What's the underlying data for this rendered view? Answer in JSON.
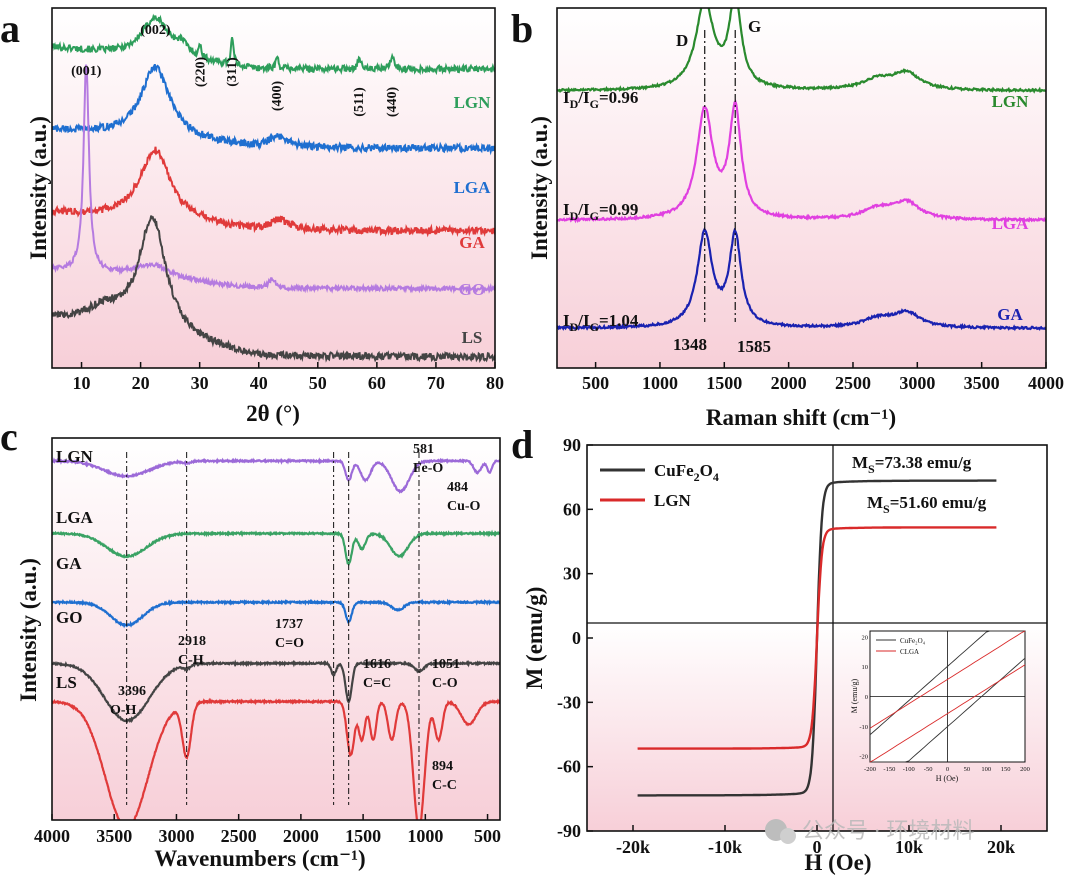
{
  "watermark": "公众号 · 环境材料",
  "chart_data": [
    {
      "panel": "a",
      "type": "line",
      "title": "",
      "xlabel": "2θ (°)",
      "ylabel": "Intensity (a.u.)",
      "xlim": [
        5,
        80
      ],
      "xticks": [
        "10",
        "20",
        "30",
        "40",
        "50",
        "60",
        "70",
        "80"
      ],
      "series": [
        {
          "name": "LGN",
          "color": "#2e9e5b",
          "baseline": 0.83,
          "bg_slope": 0.06,
          "noise": 0.018,
          "peaks": [
            {
              "x": 22.5,
              "h": 0.11,
              "w": 2.8
            },
            {
              "x": 30.1,
              "h": 0.035,
              "w": 0.25
            },
            {
              "x": 35.5,
              "h": 0.075,
              "w": 0.25
            },
            {
              "x": 43.1,
              "h": 0.03,
              "w": 0.3
            },
            {
              "x": 57.0,
              "h": 0.035,
              "w": 0.3
            },
            {
              "x": 62.6,
              "h": 0.04,
              "w": 0.3
            },
            {
              "x": 27,
              "h": 0.03,
              "w": 1.5
            }
          ]
        },
        {
          "name": "LGA",
          "color": "#1f6fd0",
          "baseline": 0.61,
          "bg_slope": 0.05,
          "noise": 0.02,
          "peaks": [
            {
              "x": 22.5,
              "h": 0.2,
              "w": 3.0
            },
            {
              "x": 43.5,
              "h": 0.03,
              "w": 2.0
            }
          ]
        },
        {
          "name": "GA",
          "color": "#e03a3a",
          "baseline": 0.38,
          "bg_slope": 0.05,
          "noise": 0.02,
          "peaks": [
            {
              "x": 22.5,
              "h": 0.2,
              "w": 3.2
            },
            {
              "x": 43.5,
              "h": 0.03,
              "w": 2.0
            }
          ]
        },
        {
          "name": "GO",
          "color": "#b57be0",
          "baseline": 0.22,
          "bg_slope": 0.05,
          "noise": 0.012,
          "peaks": [
            {
              "x": 10.8,
              "h": 0.58,
              "w": 0.55
            },
            {
              "x": 22,
              "h": 0.04,
              "w": 4
            },
            {
              "x": 42.3,
              "h": 0.025,
              "w": 0.8
            }
          ]
        },
        {
          "name": "LS",
          "color": "#444444",
          "baseline": 0.03,
          "bg_slope": 0.1,
          "noise": 0.02,
          "peaks": [
            {
              "x": 22.0,
              "h": 0.33,
              "w": 2.8
            },
            {
              "x": 14,
              "h": 0.05,
              "w": 4
            }
          ]
        }
      ],
      "series_label_colors": [
        "#2e9e5b",
        "#1f6fd0",
        "#e03a3a",
        "#b57be0",
        "#444444"
      ],
      "annotations": [
        {
          "text": "(001)",
          "x": 10.8,
          "color": "#8b1c32"
        },
        {
          "text": "(002)",
          "x": 22.5,
          "color": "#2fb8c8"
        },
        {
          "text": "(220)",
          "x": 30.1,
          "color": "#111111"
        },
        {
          "text": "(311)",
          "x": 35.5,
          "color": "#111111"
        },
        {
          "text": "(400)",
          "x": 43.1,
          "color": "#111111"
        },
        {
          "text": "(511)",
          "x": 57.0,
          "color": "#111111"
        },
        {
          "text": "(440)",
          "x": 62.6,
          "color": "#111111"
        }
      ]
    },
    {
      "panel": "b",
      "type": "line",
      "xlabel": "Raman shift (cm⁻¹)",
      "ylabel": "Intensity (a.u.)",
      "xlim": [
        200,
        4000
      ],
      "xticks": [
        "500",
        "1000",
        "1500",
        "2000",
        "2500",
        "3000",
        "3500",
        "4000"
      ],
      "band_D": "D",
      "band_G": "G",
      "peak_positions": [
        1348,
        1585
      ],
      "peak_labels": [
        "1348",
        "1585"
      ],
      "series": [
        {
          "name": "LGN",
          "color": "#2a8a2e",
          "ratio": "0.96",
          "baseline": 0.77,
          "peaks": [
            {
              "x": 1348,
              "h": 0.24,
              "w": 85
            },
            {
              "x": 1585,
              "h": 0.25,
              "w": 55
            },
            {
              "x": 2700,
              "h": 0.03,
              "w": 150
            },
            {
              "x": 2920,
              "h": 0.045,
              "w": 120
            }
          ]
        },
        {
          "name": "LGA",
          "color": "#e040e0",
          "ratio": "0.99",
          "baseline": 0.41,
          "peaks": [
            {
              "x": 1348,
              "h": 0.3,
              "w": 75
            },
            {
              "x": 1585,
              "h": 0.3,
              "w": 55
            },
            {
              "x": 2700,
              "h": 0.03,
              "w": 150
            },
            {
              "x": 2920,
              "h": 0.045,
              "w": 120
            }
          ]
        },
        {
          "name": "GA",
          "color": "#1a22b0",
          "ratio": "1.04",
          "baseline": 0.11,
          "peaks": [
            {
              "x": 1348,
              "h": 0.26,
              "w": 70
            },
            {
              "x": 1585,
              "h": 0.25,
              "w": 55
            },
            {
              "x": 2700,
              "h": 0.025,
              "w": 150
            },
            {
              "x": 2920,
              "h": 0.04,
              "w": 120
            }
          ]
        }
      ]
    },
    {
      "panel": "c",
      "type": "line",
      "xlabel": "Wavenumbers (cm⁻¹)",
      "ylabel": "Intensity (a.u.)",
      "xlim": [
        4000,
        400
      ],
      "xticks": [
        "4000",
        "3500",
        "3000",
        "2500",
        "2000",
        "1500",
        "1000",
        "500"
      ],
      "series": [
        {
          "name": "LGN",
          "color": "#9c6ad8",
          "baseline": 0.94,
          "dips": [
            {
              "x": 3400,
              "d": 0.04,
              "w": 180
            },
            {
              "x": 2918,
              "d": 0.005,
              "w": 30
            },
            {
              "x": 1616,
              "d": 0.05,
              "w": 25
            },
            {
              "x": 1480,
              "d": 0.05,
              "w": 40
            },
            {
              "x": 1200,
              "d": 0.08,
              "w": 70
            },
            {
              "x": 581,
              "d": 0.03,
              "w": 30
            },
            {
              "x": 484,
              "d": 0.03,
              "w": 20
            }
          ]
        },
        {
          "name": "LGA",
          "color": "#3aa264",
          "baseline": 0.75,
          "dips": [
            {
              "x": 3400,
              "d": 0.06,
              "w": 160
            },
            {
              "x": 1616,
              "d": 0.08,
              "w": 25
            },
            {
              "x": 1510,
              "d": 0.04,
              "w": 30
            },
            {
              "x": 1210,
              "d": 0.06,
              "w": 70
            }
          ]
        },
        {
          "name": "GA",
          "color": "#1f6fd0",
          "baseline": 0.57,
          "dips": [
            {
              "x": 3400,
              "d": 0.06,
              "w": 130
            },
            {
              "x": 1616,
              "d": 0.05,
              "w": 25
            },
            {
              "x": 1220,
              "d": 0.02,
              "w": 50
            }
          ]
        },
        {
          "name": "GO",
          "color": "#444444",
          "baseline": 0.41,
          "dips": [
            {
              "x": 3396,
              "d": 0.15,
              "w": 180
            },
            {
              "x": 2918,
              "d": 0.01,
              "w": 30
            },
            {
              "x": 1737,
              "d": 0.03,
              "w": 20
            },
            {
              "x": 1616,
              "d": 0.1,
              "w": 25
            },
            {
              "x": 1051,
              "d": 0.02,
              "w": 40
            }
          ]
        },
        {
          "name": "LS",
          "color": "#e03a3a",
          "baseline": 0.31,
          "dips": [
            {
              "x": 3400,
              "d": 0.33,
              "w": 170
            },
            {
              "x": 2918,
              "d": 0.14,
              "w": 35
            },
            {
              "x": 1600,
              "d": 0.14,
              "w": 30
            },
            {
              "x": 1510,
              "d": 0.1,
              "w": 25
            },
            {
              "x": 1420,
              "d": 0.1,
              "w": 25
            },
            {
              "x": 1270,
              "d": 0.1,
              "w": 30
            },
            {
              "x": 1051,
              "d": 0.33,
              "w": 45
            },
            {
              "x": 894,
              "d": 0.1,
              "w": 30
            },
            {
              "x": 650,
              "d": 0.06,
              "w": 60
            }
          ]
        }
      ],
      "series_label_colors": [
        "#111111",
        "#111111",
        "#111111",
        "#111111",
        "#111111"
      ],
      "annotations": [
        {
          "text": "3396",
          "sub": "O-H",
          "x": 3396
        },
        {
          "text": "2918",
          "sub": "C-H",
          "x": 2918
        },
        {
          "text": "1737",
          "sub": "C=O",
          "x": 1737
        },
        {
          "text": "1616",
          "sub": "C=C",
          "x": 1616
        },
        {
          "text": "1051",
          "sub": "C-O",
          "x": 1051
        },
        {
          "text": "894",
          "sub": "C-C",
          "x": 894
        },
        {
          "text": "581",
          "sub": "Fe-O",
          "x": 581
        },
        {
          "text": "484",
          "sub": "Cu-O",
          "x": 484
        }
      ]
    },
    {
      "panel": "d",
      "type": "line",
      "xlabel": "H (Oe)",
      "ylabel": "M (emu/g)",
      "xlim": [
        -25000,
        25000
      ],
      "ylim": [
        -90,
        90
      ],
      "xticks": [
        {
          "v": -20000,
          "label": "-20k"
        },
        {
          "v": -10000,
          "label": "-10k"
        },
        {
          "v": 0,
          "label": "0"
        },
        {
          "v": 10000,
          "label": "10k"
        },
        {
          "v": 20000,
          "label": "20k"
        }
      ],
      "yticks": [
        -90,
        -60,
        -30,
        0,
        30,
        60,
        90
      ],
      "legend_position": "top-left",
      "series": [
        {
          "name": "CuFe",
          "sub": "2",
          "tail": "O",
          "sub2": "4",
          "color": "#333333",
          "ms": 73.38,
          "ms_label": "M",
          "ms_sub": "S",
          "ms_value": "=73.38 emu/g"
        },
        {
          "name": "LGN",
          "color": "#d92a2a",
          "ms": 51.6,
          "ms_label": "M",
          "ms_sub": "S",
          "ms_value": "=51.60 emu/g"
        }
      ],
      "inset": {
        "xlabel": "H (Oe)",
        "ylabel": "M (emu/g)",
        "xticks": [
          "-200",
          "-150",
          "-100",
          "-50",
          "0",
          "50",
          "100",
          "150",
          "200"
        ],
        "yticks": [
          "-20",
          "-10",
          "0",
          "10",
          "20"
        ],
        "legend": [
          "CuFe₂O₄",
          "CLGA"
        ],
        "colors": [
          "#333333",
          "#d92a2a"
        ]
      }
    }
  ]
}
